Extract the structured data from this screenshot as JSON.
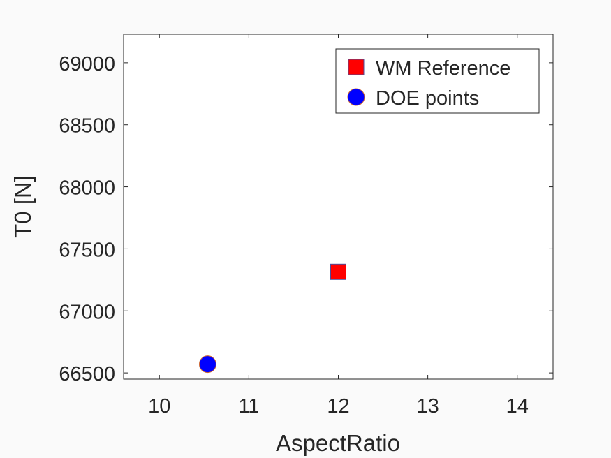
{
  "chart_data": {
    "type": "scatter",
    "xlabel": "AspectRatio",
    "ylabel": "T0 [N]",
    "xlim": [
      9.6,
      14.4
    ],
    "ylim": [
      66450,
      69230
    ],
    "xticks": [
      10,
      11,
      12,
      13,
      14
    ],
    "yticks": [
      66500,
      67000,
      67500,
      68000,
      68500,
      69000
    ],
    "xtick_labels": [
      "10",
      "11",
      "12",
      "13",
      "14"
    ],
    "ytick_labels": [
      "66500",
      "67000",
      "67500",
      "68000",
      "68500",
      "69000"
    ],
    "grid": false,
    "legend_position": "top-right",
    "series": [
      {
        "name": "WM Reference",
        "marker": "square",
        "color": "#ff0000",
        "edge_color": "#4d4d9a",
        "points": [
          {
            "x": 12.0,
            "y": 67315
          }
        ]
      },
      {
        "name": "DOE points",
        "marker": "circle",
        "color": "#0000ff",
        "edge_color": "#cc6633",
        "points": [
          {
            "x": 10.54,
            "y": 66570
          }
        ]
      }
    ]
  }
}
